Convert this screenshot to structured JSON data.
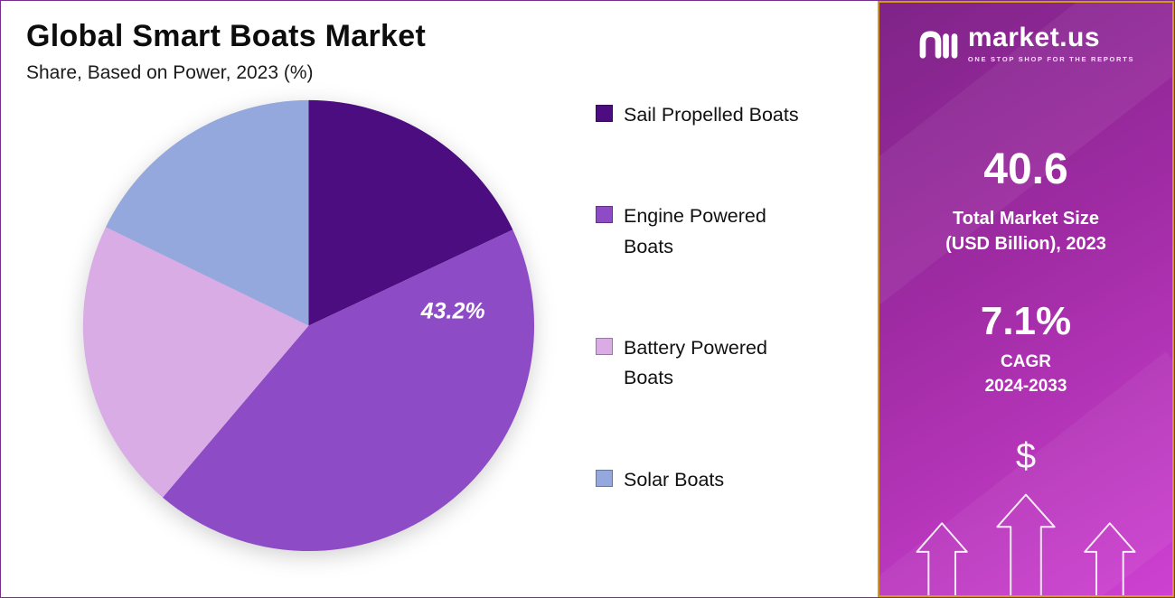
{
  "page": {
    "title": "Global Smart Boats Market",
    "subtitle": "Share, Based on Power, 2023 (%)"
  },
  "chart_data": {
    "type": "pie",
    "title": "Global Smart Boats Market",
    "subtitle": "Share, Based on Power, 2023 (%)",
    "unit": "%",
    "categories": [
      "Sail Propelled Boats",
      "Engine Powered Boats",
      "Battery Powered Boats",
      "Solar Boats"
    ],
    "values": [
      18,
      43.2,
      21,
      17.8
    ],
    "colors": [
      "#4b0d7f",
      "#8d4bc5",
      "#d9ace6",
      "#95a8de"
    ],
    "labeled_slice": {
      "index": 1,
      "text": "43.2%"
    },
    "start_angle_deg": 0,
    "direction": "clockwise",
    "legend_position": "right"
  },
  "legend": {
    "items": [
      {
        "label": "Sail Propelled Boats",
        "color": "#4b0d7f"
      },
      {
        "label": "Engine Powered\nBoats",
        "color": "#8d4bc5"
      },
      {
        "label": "Battery Powered\nBoats",
        "color": "#d9ace6"
      },
      {
        "label": "Solar Boats",
        "color": "#95a8de"
      }
    ]
  },
  "sidebar": {
    "logo_text": "market.us",
    "logo_tagline": "ONE STOP SHOP FOR THE REPORTS",
    "market_size_value": "40.6",
    "market_size_label": "Total Market Size\n(USD Billion), 2023",
    "cagr_value": "7.1%",
    "cagr_label": "CAGR\n2024-2033",
    "dollar_icon": "$",
    "colors": {
      "gradient_start": "#7f2488",
      "gradient_end": "#ce41d2",
      "border": "#d6951f"
    }
  }
}
